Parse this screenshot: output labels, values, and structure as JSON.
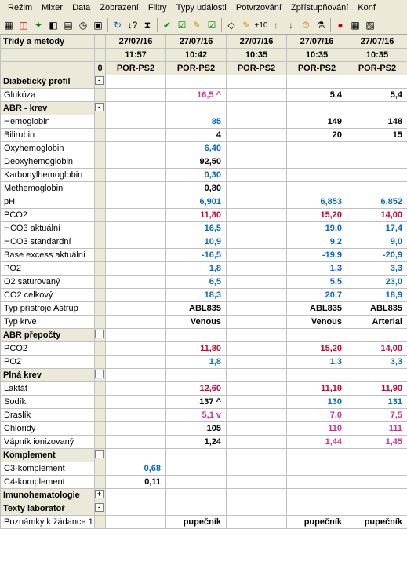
{
  "menu": [
    "Režim",
    "Mixer",
    "Data",
    "Zobrazení",
    "Filtry",
    "Typy události",
    "Potvrzování",
    "Zpřístupňování",
    "Konf"
  ],
  "header": {
    "title": "Třídy a metody",
    "zero": "0",
    "dates": [
      "27/07/16",
      "27/07/16",
      "27/07/16",
      "27/07/16",
      "27/07/16"
    ],
    "times": [
      "11:57",
      "10:42",
      "10:35",
      "10:35",
      "10:35"
    ],
    "src": [
      "POR-PS2",
      "POR-PS2",
      "POR-PS2",
      "POR-PS2",
      "POR-PS2"
    ]
  },
  "rows": [
    {
      "t": "g",
      "l": "Diabetický profil",
      "exp": "-"
    },
    {
      "t": "r",
      "l": "Glukóza",
      "v": [
        "",
        "16,5 ^",
        "",
        "5,4",
        "5,4"
      ],
      "c": [
        "",
        "magenta",
        "",
        "black",
        "black"
      ]
    },
    {
      "t": "g",
      "l": "ABR - krev",
      "exp": "-"
    },
    {
      "t": "r",
      "l": "Hemoglobin",
      "v": [
        "",
        "85",
        "",
        "149",
        "148"
      ],
      "c": [
        "",
        "blue",
        "",
        "black",
        "black"
      ]
    },
    {
      "t": "r",
      "l": "Bilirubin",
      "v": [
        "",
        "4",
        "",
        "20",
        "15"
      ],
      "c": [
        "",
        "black",
        "",
        "black",
        "black"
      ]
    },
    {
      "t": "r",
      "l": "Oxyhemoglobin",
      "v": [
        "",
        "6,40",
        "",
        "",
        ""
      ],
      "c": [
        "",
        "blue",
        "",
        "",
        ""
      ]
    },
    {
      "t": "r",
      "l": "Deoxyhemoglobin",
      "v": [
        "",
        "92,50",
        "",
        "",
        ""
      ],
      "c": [
        "",
        "black",
        "",
        "",
        ""
      ]
    },
    {
      "t": "r",
      "l": "Karbonylhemoglobin",
      "v": [
        "",
        "0,30",
        "",
        "",
        ""
      ],
      "c": [
        "",
        "blue",
        "",
        "",
        ""
      ]
    },
    {
      "t": "r",
      "l": "Methemoglobin",
      "v": [
        "",
        "0,80",
        "",
        "",
        ""
      ],
      "c": [
        "",
        "black",
        "",
        "",
        ""
      ]
    },
    {
      "t": "r",
      "l": "pH",
      "v": [
        "",
        "6,901",
        "",
        "6,853",
        "6,852"
      ],
      "c": [
        "",
        "blue",
        "",
        "blue",
        "blue"
      ]
    },
    {
      "t": "r",
      "l": "PCO2",
      "v": [
        "",
        "11,80",
        "",
        "15,20",
        "14,00"
      ],
      "c": [
        "",
        "red",
        "",
        "red",
        "red"
      ]
    },
    {
      "t": "r",
      "l": "HCO3 aktuální",
      "v": [
        "",
        "16,5",
        "",
        "19,0",
        "17,4"
      ],
      "c": [
        "",
        "blue",
        "",
        "blue",
        "blue"
      ]
    },
    {
      "t": "r",
      "l": "HCO3 standardní",
      "v": [
        "",
        "10,9",
        "",
        "9,2",
        "9,0"
      ],
      "c": [
        "",
        "blue",
        "",
        "blue",
        "blue"
      ]
    },
    {
      "t": "r",
      "l": "Base excess aktuální",
      "v": [
        "",
        "-16,5",
        "",
        "-19,9",
        "-20,9"
      ],
      "c": [
        "",
        "blue",
        "",
        "blue",
        "blue"
      ]
    },
    {
      "t": "r",
      "l": "PO2",
      "v": [
        "",
        "1,8",
        "",
        "1,3",
        "3,3"
      ],
      "c": [
        "",
        "blue",
        "",
        "blue",
        "blue"
      ]
    },
    {
      "t": "r",
      "l": "O2 saturovaný",
      "v": [
        "",
        "6,5",
        "",
        "5,5",
        "23,0"
      ],
      "c": [
        "",
        "blue",
        "",
        "blue",
        "blue"
      ]
    },
    {
      "t": "r",
      "l": "CO2 celkový",
      "v": [
        "",
        "18,3",
        "",
        "20,7",
        "18,9"
      ],
      "c": [
        "",
        "blue",
        "",
        "blue",
        "blue"
      ]
    },
    {
      "t": "r",
      "l": "Typ přístroje Astrup",
      "v": [
        "",
        "ABL835",
        "",
        "ABL835",
        "ABL835"
      ],
      "c": [
        "",
        "black",
        "",
        "black",
        "black"
      ]
    },
    {
      "t": "r",
      "l": "Typ krve",
      "v": [
        "",
        "Venous",
        "",
        "Venous",
        "Arterial"
      ],
      "c": [
        "",
        "black",
        "",
        "black",
        "black"
      ]
    },
    {
      "t": "g",
      "l": "ABR přepočty",
      "exp": "-"
    },
    {
      "t": "r",
      "l": "PCO2",
      "v": [
        "",
        "11,80",
        "",
        "15,20",
        "14,00"
      ],
      "c": [
        "",
        "red",
        "",
        "red",
        "red"
      ]
    },
    {
      "t": "r",
      "l": "PO2",
      "v": [
        "",
        "1,8",
        "",
        "1,3",
        "3,3"
      ],
      "c": [
        "",
        "blue",
        "",
        "blue",
        "blue"
      ]
    },
    {
      "t": "g",
      "l": "Plná krev",
      "exp": "-"
    },
    {
      "t": "r",
      "l": "Laktát",
      "v": [
        "",
        "12,60",
        "",
        "11,10",
        "11,90"
      ],
      "c": [
        "",
        "red",
        "",
        "red",
        "red"
      ]
    },
    {
      "t": "r",
      "l": "Sodík",
      "v": [
        "",
        "137 ^",
        "",
        "130",
        "131"
      ],
      "c": [
        "",
        "black",
        "",
        "blue",
        "blue"
      ]
    },
    {
      "t": "r",
      "l": "Draslík",
      "v": [
        "",
        "5,1 v",
        "",
        "7,0",
        "7,5"
      ],
      "c": [
        "",
        "magenta",
        "",
        "magenta",
        "magenta"
      ]
    },
    {
      "t": "r",
      "l": "Chloridy",
      "v": [
        "",
        "105",
        "",
        "110",
        "111"
      ],
      "c": [
        "",
        "black",
        "",
        "magenta",
        "magenta"
      ]
    },
    {
      "t": "r",
      "l": "Vápník ionizovaný",
      "v": [
        "",
        "1,24",
        "",
        "1,44",
        "1,45"
      ],
      "c": [
        "",
        "black",
        "",
        "magenta",
        "magenta"
      ]
    },
    {
      "t": "g",
      "l": "Komplement",
      "exp": "-"
    },
    {
      "t": "r",
      "l": "C3-komplement",
      "v": [
        "0,68",
        "",
        "",
        "",
        ""
      ],
      "c": [
        "blue",
        "",
        "",
        "",
        ""
      ]
    },
    {
      "t": "r",
      "l": "C4-komplement",
      "v": [
        "0,11",
        "",
        "",
        "",
        ""
      ],
      "c": [
        "black",
        "",
        "",
        "",
        ""
      ]
    },
    {
      "t": "g",
      "l": "Imunohematologie",
      "exp": "+"
    },
    {
      "t": "g",
      "l": "Texty laboratoř",
      "exp": "-"
    },
    {
      "t": "r",
      "l": "Poznámky k žádance 1",
      "v": [
        "",
        "pupečník",
        "",
        "pupečník",
        "pupečník"
      ],
      "c": [
        "",
        "black",
        "",
        "black",
        "black"
      ]
    }
  ]
}
